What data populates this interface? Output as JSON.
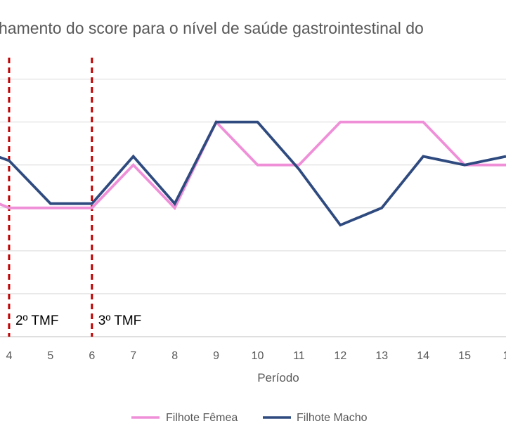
{
  "chart_data": {
    "type": "line",
    "title": "hamento do score para o nível de saúde gastrointestinal do",
    "xlabel": "Período",
    "ylabel": "",
    "x": [
      3,
      4,
      5,
      6,
      7,
      8,
      9,
      10,
      11,
      12,
      13,
      14,
      15,
      16
    ],
    "x_tick_labels": [
      "4",
      "5",
      "6",
      "7",
      "8",
      "9",
      "10",
      "11",
      "12",
      "13",
      "14",
      "15",
      "1"
    ],
    "xlim": [
      3.78,
      16.0
    ],
    "ylim": [
      0,
      6.5
    ],
    "grid": true,
    "legend_position": "bottom",
    "series": [
      {
        "name": "Filhote Fêmea",
        "color": "#ef8fd8",
        "values": [
          3.4,
          3.0,
          3.0,
          3.0,
          4.0,
          3.0,
          5.0,
          4.0,
          4.0,
          5.0,
          5.0,
          5.0,
          4.0,
          4.0
        ]
      },
      {
        "name": "Filhote Macho",
        "color": "#2e4a7f",
        "values": [
          4.45,
          4.1,
          3.1,
          3.1,
          4.2,
          3.1,
          5.0,
          5.0,
          3.9,
          2.6,
          3.0,
          4.2,
          4.0,
          4.2
        ]
      }
    ],
    "annotations": [
      {
        "label": "2º TMF",
        "x": 4,
        "color": "#c00000"
      },
      {
        "label": "3º TMF",
        "x": 6,
        "color": "#c00000"
      }
    ]
  }
}
